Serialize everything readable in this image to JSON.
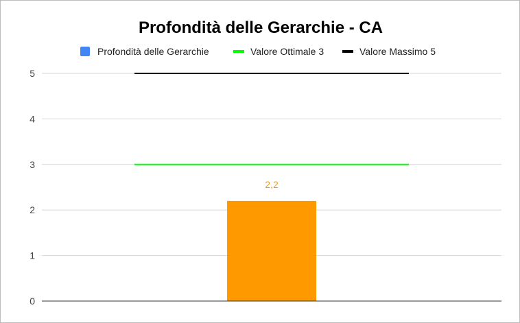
{
  "chart_data": {
    "type": "bar",
    "title": "Profondità delle Gerarchie - CA",
    "categories": [
      ""
    ],
    "series": [
      {
        "name": "Profondità delle Gerarchie",
        "kind": "bar",
        "values": [
          2.2
        ],
        "legend_color": "#4285f4",
        "bar_color": "#ff9900",
        "data_labels": [
          "2,2"
        ]
      },
      {
        "name": "Valore Ottimale 3",
        "kind": "line",
        "values": [
          3
        ],
        "color": "#00ff00"
      },
      {
        "name": "Valore Massimo 5",
        "kind": "line",
        "values": [
          5
        ],
        "color": "#000000"
      }
    ],
    "ylim": [
      0,
      5
    ],
    "yticks": [
      "0",
      "1",
      "2",
      "3",
      "4",
      "5"
    ],
    "xlabel": "",
    "ylabel": "",
    "grid": true,
    "legend_position": "top"
  }
}
